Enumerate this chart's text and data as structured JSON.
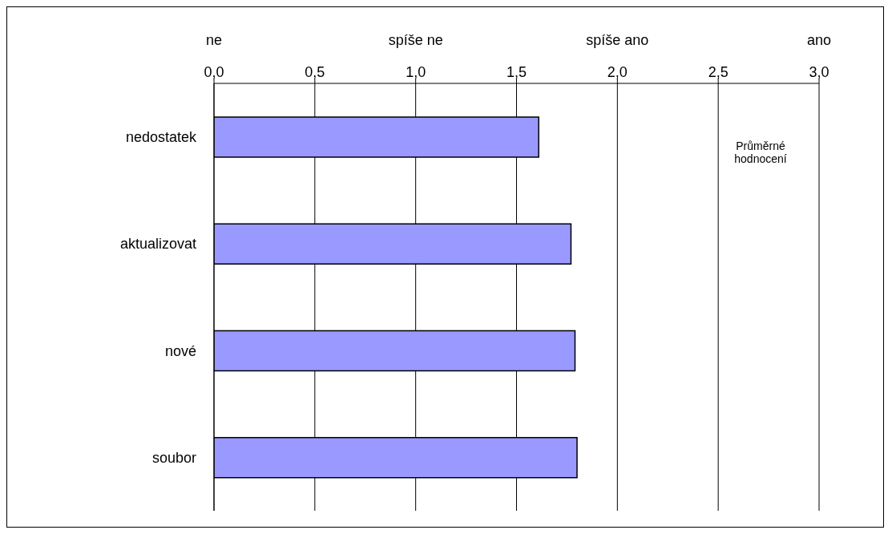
{
  "chart_data": {
    "type": "bar",
    "orientation": "horizontal",
    "categories": [
      "nedostatek",
      "aktualizovat",
      "nové",
      "soubor"
    ],
    "values": [
      1.61,
      1.77,
      1.79,
      1.8
    ],
    "color": "#9999ff",
    "xlim": [
      0,
      3
    ],
    "xticks": [
      {
        "value": 0,
        "label": "0,0"
      },
      {
        "value": 0.5,
        "label": "0,5"
      },
      {
        "value": 1,
        "label": "1,0"
      },
      {
        "value": 1.5,
        "label": "1,5"
      },
      {
        "value": 2,
        "label": "2,0"
      },
      {
        "value": 2.5,
        "label": "2,5"
      },
      {
        "value": 3,
        "label": "3,0"
      }
    ],
    "grid": "x",
    "legend": false,
    "annotations": [
      "ne",
      "spíše  ne",
      "spíše ano",
      "ano",
      "Průměrné hodnocení"
    ]
  }
}
